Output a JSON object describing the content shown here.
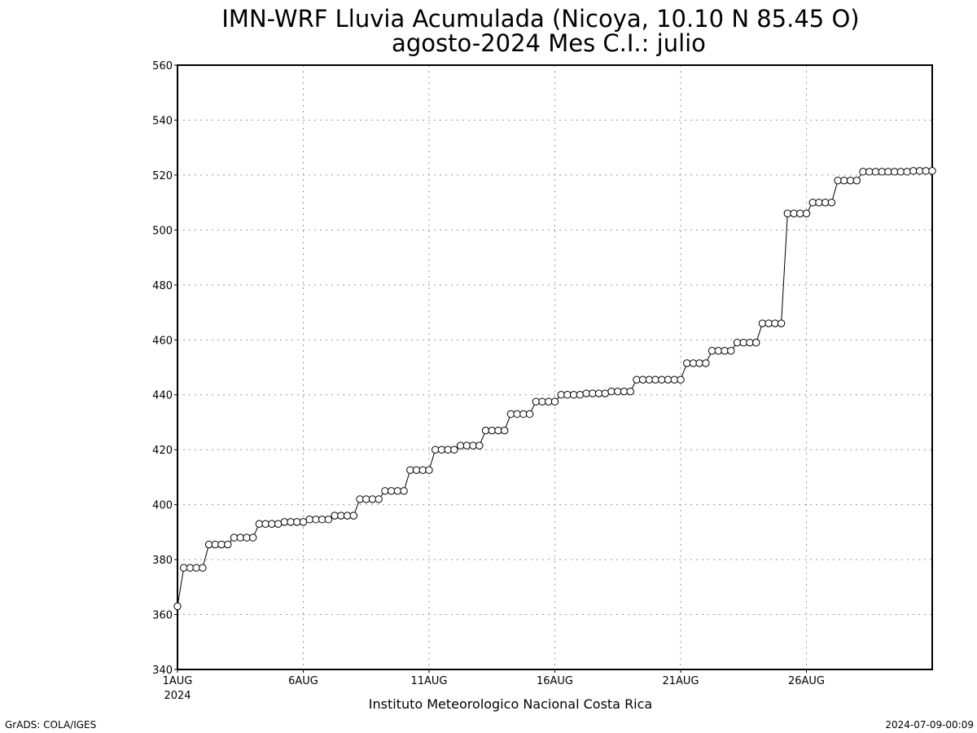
{
  "chart_data": {
    "type": "line",
    "title": "IMN-WRF  Lluvia Acumulada (Nicoya, 10.10  N 85.45  O)",
    "subtitle": "agosto-2024 Mes C.I.: julio",
    "xlabel": "Instituto Meteorologico Nacional Costa Rica",
    "ylabel": "",
    "ylim": [
      340,
      560
    ],
    "yticks": [
      340,
      360,
      380,
      400,
      420,
      440,
      460,
      480,
      500,
      520,
      540,
      560
    ],
    "xlim": [
      1,
      31
    ],
    "xticks": [
      {
        "x": 1,
        "label": "1AUG",
        "sublabel": "2024"
      },
      {
        "x": 6,
        "label": "6AUG"
      },
      {
        "x": 11,
        "label": "11AUG"
      },
      {
        "x": 16,
        "label": "16AUG"
      },
      {
        "x": 21,
        "label": "21AUG"
      },
      {
        "x": 26,
        "label": "26AUG"
      }
    ],
    "grid": true,
    "marker": "open-circle",
    "x_step_days": 0.25,
    "series": [
      {
        "values": [
          363,
          377,
          377,
          377,
          377,
          385.5,
          385.5,
          385.5,
          385.5,
          388,
          388,
          388,
          388,
          393,
          393,
          393,
          393,
          393.7,
          393.7,
          393.7,
          393.7,
          394.6,
          394.6,
          394.6,
          394.6,
          396,
          396,
          396,
          396,
          402,
          402,
          402,
          402,
          405,
          405,
          405,
          405,
          412.6,
          412.6,
          412.6,
          412.6,
          420,
          420,
          420,
          420,
          421.5,
          421.5,
          421.5,
          421.5,
          427,
          427,
          427,
          427,
          433,
          433,
          433,
          433,
          437.5,
          437.5,
          437.5,
          437.5,
          440,
          440,
          440,
          440,
          440.5,
          440.5,
          440.5,
          440.5,
          441.2,
          441.2,
          441.2,
          441.2,
          445.5,
          445.5,
          445.5,
          445.5,
          445.5,
          445.5,
          445.5,
          445.5,
          451.5,
          451.5,
          451.5,
          451.5,
          456,
          456,
          456,
          456,
          459,
          459,
          459,
          459,
          466,
          466,
          466,
          466,
          506,
          506,
          506,
          506,
          510,
          510,
          510,
          510,
          518,
          518,
          518,
          518,
          521.2,
          521.2,
          521.2,
          521.2,
          521.2,
          521.2,
          521.2,
          521.2,
          521.5,
          521.5,
          521.5,
          521.5
        ]
      }
    ]
  },
  "footer": {
    "left": "GrADS: COLA/IGES",
    "right": "2024-07-09-00:09"
  }
}
